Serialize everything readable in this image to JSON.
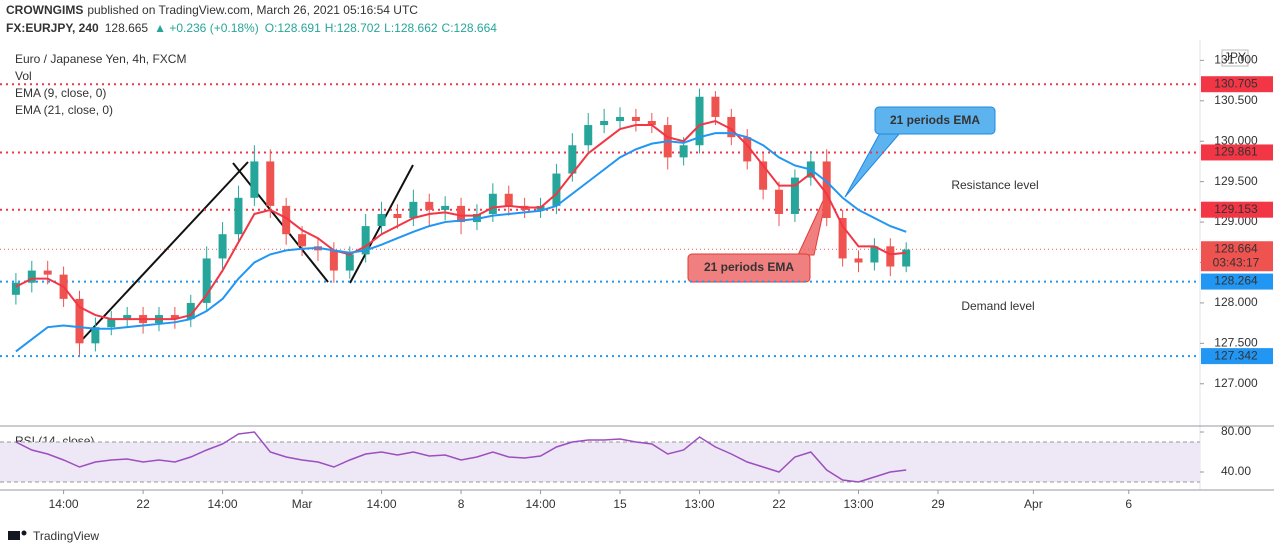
{
  "header": {
    "author": "CROWNGIMS",
    "published": "published on TradingView.com, March 26, 2021 05:16:54 UTC",
    "symbol": "FX:EURJPY, 240",
    "price": "128.665",
    "change": "▲ +0.236 (+0.18%)",
    "open": "O:128.691",
    "high": "H:128.702",
    "low": "L:128.662",
    "close": "C:128.664"
  },
  "footer": "TradingView",
  "chart_data": [
    {
      "type": "candlestick",
      "title": "Euro / Japanese Yen, 4h, FXCM",
      "volume_label": "Vol",
      "currency": "JPY",
      "up_color": "#26a69a",
      "down_color": "#ef5350",
      "x": [
        -4,
        -3.5,
        -3,
        -2.5,
        -2,
        -1.5,
        -1,
        -0.5,
        0,
        0.5,
        1,
        1.5,
        2,
        2.5,
        3,
        3.5,
        4,
        4.5,
        5,
        5.5,
        6,
        6.5,
        7,
        7.5,
        8,
        8.5,
        9,
        9.5,
        10,
        10.5,
        11,
        11.5,
        12,
        12.5,
        13,
        13.5,
        14,
        14.5,
        15,
        15.5,
        16,
        16.5,
        17,
        17.5,
        18,
        18.5,
        19,
        19.5,
        20,
        20.5,
        21,
        21.5,
        22,
        22.5,
        23,
        23.5,
        24
      ],
      "open": [
        128.1,
        128.25,
        128.4,
        128.35,
        128.05,
        127.5,
        127.7,
        127.8,
        127.85,
        127.75,
        127.85,
        127.8,
        128.0,
        128.55,
        128.85,
        129.3,
        129.75,
        129.2,
        128.85,
        128.7,
        128.65,
        128.4,
        128.6,
        128.95,
        129.1,
        129.05,
        129.25,
        129.15,
        129.2,
        129.0,
        129.1,
        129.35,
        129.2,
        129.15,
        129.2,
        129.6,
        129.95,
        130.2,
        130.25,
        130.3,
        130.25,
        130.2,
        129.8,
        129.95,
        130.55,
        130.3,
        130.05,
        129.75,
        129.4,
        129.1,
        129.55,
        129.75,
        129.05,
        128.55,
        128.5,
        128.7,
        128.45
      ],
      "high": [
        128.37,
        128.52,
        128.52,
        128.45,
        128.15,
        127.82,
        127.9,
        127.95,
        127.95,
        127.95,
        127.95,
        128.1,
        128.7,
        129.0,
        129.45,
        129.95,
        129.9,
        129.3,
        128.95,
        128.8,
        128.75,
        128.7,
        129.1,
        129.25,
        129.22,
        129.4,
        129.35,
        129.32,
        129.3,
        129.22,
        129.48,
        129.45,
        129.3,
        129.3,
        129.72,
        130.1,
        130.35,
        130.4,
        130.42,
        130.4,
        130.35,
        130.3,
        130.05,
        130.65,
        130.62,
        130.4,
        130.15,
        129.85,
        129.5,
        129.65,
        129.88,
        129.9,
        129.15,
        128.65,
        128.8,
        128.8,
        128.75
      ],
      "low": [
        127.98,
        128.13,
        128.23,
        127.95,
        127.35,
        127.4,
        127.6,
        127.7,
        127.62,
        127.65,
        127.68,
        127.7,
        127.9,
        128.42,
        128.75,
        129.2,
        129.05,
        128.72,
        128.58,
        128.52,
        128.25,
        128.3,
        128.5,
        128.85,
        128.92,
        128.95,
        128.95,
        129.02,
        128.85,
        128.9,
        129.0,
        129.08,
        129.05,
        129.05,
        129.1,
        129.5,
        129.85,
        130.1,
        130.15,
        130.12,
        130.1,
        129.65,
        129.7,
        129.85,
        130.2,
        129.95,
        129.65,
        129.28,
        128.95,
        129.0,
        129.45,
        128.95,
        128.45,
        128.38,
        128.4,
        128.33,
        128.38
      ],
      "close": [
        128.25,
        128.4,
        128.35,
        128.05,
        127.5,
        127.7,
        127.8,
        127.85,
        127.75,
        127.85,
        127.8,
        128.0,
        128.55,
        128.85,
        129.3,
        129.75,
        129.2,
        128.85,
        128.7,
        128.65,
        128.4,
        128.6,
        128.95,
        129.1,
        129.05,
        129.25,
        129.15,
        129.2,
        129.0,
        129.1,
        129.35,
        129.2,
        129.15,
        129.2,
        129.6,
        129.95,
        130.2,
        130.25,
        130.3,
        130.25,
        130.2,
        129.8,
        129.95,
        130.55,
        130.3,
        130.05,
        129.75,
        129.4,
        129.1,
        129.55,
        129.75,
        129.05,
        128.55,
        128.5,
        128.7,
        128.45,
        128.66
      ],
      "series": [
        {
          "name": "EMA (9, close, 0)",
          "color": "#f23645",
          "values": [
            128.2,
            128.3,
            128.3,
            128.2,
            127.95,
            127.85,
            127.8,
            127.8,
            127.8,
            127.8,
            127.8,
            127.85,
            128.1,
            128.4,
            128.75,
            129.1,
            129.15,
            129.05,
            128.9,
            128.8,
            128.65,
            128.6,
            128.7,
            128.85,
            128.95,
            129.05,
            129.1,
            129.12,
            129.08,
            129.08,
            129.18,
            129.2,
            129.18,
            129.18,
            129.35,
            129.6,
            129.85,
            130.0,
            130.15,
            130.2,
            130.2,
            130.05,
            130.0,
            130.2,
            130.25,
            130.15,
            129.95,
            129.7,
            129.45,
            129.45,
            129.6,
            129.35,
            128.95,
            128.7,
            128.7,
            128.6,
            128.62
          ]
        },
        {
          "name": "EMA (21, close, 0)",
          "color": "#2196f3",
          "values": [
            127.4,
            127.55,
            127.7,
            127.72,
            127.7,
            127.68,
            127.68,
            127.7,
            127.72,
            127.74,
            127.76,
            127.8,
            127.9,
            128.05,
            128.3,
            128.5,
            128.6,
            128.65,
            128.67,
            128.68,
            128.65,
            128.62,
            128.65,
            128.72,
            128.8,
            128.88,
            128.95,
            129.0,
            129.02,
            129.04,
            129.08,
            129.1,
            129.12,
            129.14,
            129.2,
            129.35,
            129.5,
            129.65,
            129.8,
            129.9,
            129.97,
            130.0,
            129.98,
            130.05,
            130.1,
            130.1,
            130.05,
            129.95,
            129.8,
            129.7,
            129.65,
            129.5,
            129.3,
            129.15,
            129.05,
            128.95,
            128.88
          ]
        }
      ],
      "xlim": [
        -4.5,
        33.24
      ],
      "xticks": [
        {
          "value": -2.5,
          "label": "14:00"
        },
        {
          "value": 0,
          "label": "22"
        },
        {
          "value": 2.5,
          "label": "14:00"
        },
        {
          "value": 5,
          "label": "Mar"
        },
        {
          "value": 7.5,
          "label": "14:00"
        },
        {
          "value": 10,
          "label": "8"
        },
        {
          "value": 12.5,
          "label": "14:00"
        },
        {
          "value": 15,
          "label": "15"
        },
        {
          "value": 17.5,
          "label": "13:00"
        },
        {
          "value": 20,
          "label": "22"
        },
        {
          "value": 22.5,
          "label": "13:00"
        },
        {
          "value": 25,
          "label": "29"
        },
        {
          "value": 28,
          "label": "Apr"
        },
        {
          "value": 31,
          "label": "6"
        }
      ],
      "ylim": [
        126.49,
        131.19
      ],
      "yticks": [
        {
          "value": 127,
          "label": "127.000"
        },
        {
          "value": 127.5,
          "label": "127.500"
        },
        {
          "value": 128,
          "label": "128.000"
        },
        {
          "value": 128.5,
          "label": "128.500"
        },
        {
          "value": 129,
          "label": "129.000"
        },
        {
          "value": 129.5,
          "label": "129.500"
        },
        {
          "value": 130,
          "label": "130.000"
        },
        {
          "value": 130.5,
          "label": "130.500"
        },
        {
          "value": 131,
          "label": "131.000"
        }
      ],
      "levels": [
        {
          "value": 130.705,
          "color": "#f23645"
        },
        {
          "value": 129.861,
          "color": "#f23645"
        },
        {
          "value": 129.153,
          "color": "#f23645"
        },
        {
          "value": 128.264,
          "color": "#2196f3"
        },
        {
          "value": 127.342,
          "color": "#2196f3"
        }
      ],
      "last_price": 128.664,
      "last_color": "#ef5350",
      "countdown": "03:43:17",
      "annotations": [
        {
          "text": "21 periods EMA",
          "color": "#2196f3"
        },
        {
          "text": "Resistance level",
          "color": "#e53935"
        },
        {
          "text": "21 periods EMA",
          "color": "#ef5350"
        },
        {
          "text": "Demand level",
          "color": "#1e88e5"
        }
      ]
    },
    {
      "type": "line",
      "title": "RSI (14, close)",
      "band": [
        30,
        70
      ],
      "band_color": "#ede7f6",
      "series": [
        {
          "name": "RSI (14, close)",
          "color": "#9c4fbf",
          "values": [
            70,
            62,
            58,
            52,
            45,
            50,
            52,
            53,
            50,
            52,
            50,
            55,
            62,
            68,
            78,
            80,
            60,
            55,
            52,
            50,
            45,
            52,
            58,
            60,
            57,
            60,
            56,
            57,
            52,
            55,
            60,
            55,
            54,
            56,
            65,
            70,
            72,
            72,
            73,
            70,
            68,
            58,
            62,
            75,
            65,
            58,
            50,
            45,
            40,
            55,
            60,
            42,
            32,
            30,
            35,
            40,
            42
          ]
        }
      ],
      "ylim": [
        22,
        84
      ],
      "yticks": [
        {
          "value": 80,
          "label": "80.00"
        },
        {
          "value": 40,
          "label": "40.00"
        }
      ]
    }
  ]
}
